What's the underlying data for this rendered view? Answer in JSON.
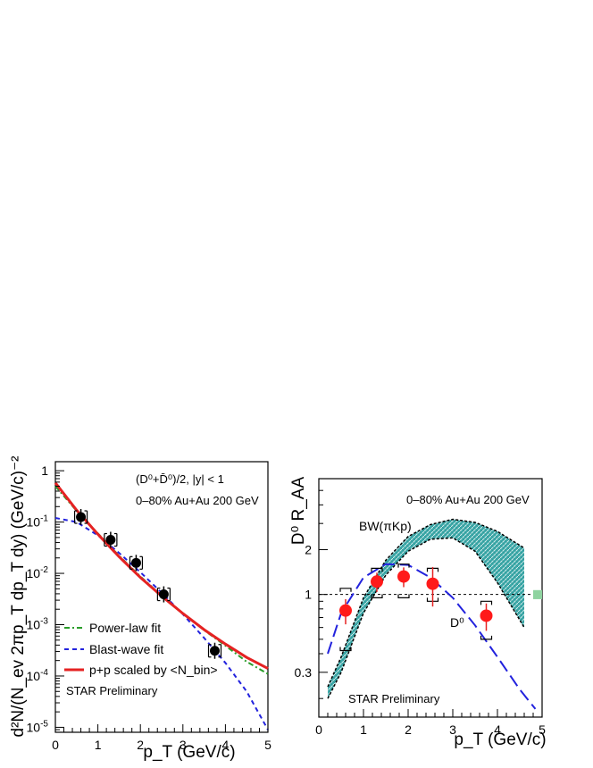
{
  "chart_data": [
    {
      "type": "scatter",
      "title": "",
      "xlabel": "p_T (GeV/c)",
      "ylabel": "d²N/(N_ev 2πp_T dp_T dy) (GeV/c)⁻²",
      "xlim": [
        0,
        5
      ],
      "ylim": [
        8e-06,
        1.5
      ],
      "yscale": "log",
      "grid": false,
      "legend_position": "bottom-left",
      "x_ticks": [
        "0",
        "1",
        "2",
        "3",
        "4",
        "5"
      ],
      "y_ticks": [
        {
          "base": "10",
          "exp": "-5"
        },
        {
          "base": "10",
          "exp": "-4"
        },
        {
          "base": "10",
          "exp": "-3"
        },
        {
          "base": "10",
          "exp": "-2"
        },
        {
          "base": "10",
          "exp": "-1"
        },
        {
          "base": "1",
          "exp": ""
        }
      ],
      "annotations": [
        "(D⁰+D̄⁰)/2, |y| < 1",
        "0–80% Au+Au 200 GeV",
        "STAR Preliminary"
      ],
      "points": {
        "name": "D0 data",
        "x": [
          0.6,
          1.3,
          1.9,
          2.55,
          3.75
        ],
        "y": [
          0.125,
          0.045,
          0.016,
          0.0039,
          0.00031
        ]
      },
      "series": [
        {
          "name": "Power-law fit",
          "color": "#2a9d2a",
          "style": "dashdot",
          "x": [
            0,
            0.5,
            1,
            1.5,
            2,
            2.5,
            3,
            3.5,
            4,
            4.5,
            5
          ],
          "y": [
            0.5,
            0.165,
            0.06,
            0.022,
            0.0087,
            0.0037,
            0.00165,
            0.00078,
            0.00039,
            0.00019,
            0.00011
          ]
        },
        {
          "name": "Blast-wave fit",
          "color": "#2222dd",
          "style": "dashed",
          "x": [
            0,
            0.5,
            1,
            1.5,
            2,
            2.5,
            3,
            3.5,
            4,
            4.5,
            5
          ],
          "y": [
            0.12,
            0.1,
            0.055,
            0.025,
            0.0105,
            0.0042,
            0.0016,
            0.00055,
            0.00018,
            5e-05,
            9e-06
          ]
        },
        {
          "name": "p+p scaled by <N_bin>",
          "color": "#e52222",
          "style": "solid",
          "x": [
            0,
            0.5,
            1,
            1.5,
            2,
            2.5,
            3,
            3.5,
            4,
            4.5,
            5
          ],
          "y": [
            0.58,
            0.17,
            0.058,
            0.021,
            0.0083,
            0.0036,
            0.00165,
            0.0008,
            0.00042,
            0.00023,
            0.00014
          ]
        }
      ]
    },
    {
      "type": "scatter",
      "title": "",
      "xlabel": "p_T (GeV/c)",
      "ylabel": "D⁰ R_AA",
      "xlim": [
        0,
        5
      ],
      "ylim": [
        0.15,
        6
      ],
      "yscale": "log",
      "grid": false,
      "x_ticks": [
        "0",
        "1",
        "2",
        "3",
        "4",
        "5"
      ],
      "y_ticks": [
        "0.3",
        "1",
        "2"
      ],
      "y_tick_values": [
        0.3,
        1,
        2
      ],
      "annotations": [
        "0–80% Au+Au 200 GeV",
        "BW(πKp)",
        "D⁰",
        "STAR Preliminary"
      ],
      "reference_line": 1.0,
      "points": {
        "name": "D0 RAA",
        "x": [
          0.6,
          1.3,
          1.9,
          2.55,
          3.75
        ],
        "y": [
          0.78,
          1.22,
          1.32,
          1.18,
          0.72
        ],
        "err": [
          0.15,
          0.18,
          0.2,
          0.35,
          0.15
        ],
        "sys_lo": [
          0.42,
          0.95,
          0.95,
          0.9,
          0.5
        ],
        "sys_hi": [
          1.1,
          1.5,
          1.6,
          1.5,
          0.9
        ]
      },
      "band": {
        "name": "BW(πKp)",
        "color": "#3ba8a8",
        "x": [
          0.2,
          0.5,
          1,
          1.5,
          2,
          2.5,
          3,
          3.5,
          4,
          4.6
        ],
        "lower": [
          0.2,
          0.3,
          0.75,
          1.35,
          1.95,
          2.35,
          2.4,
          1.95,
          1.2,
          0.6
        ],
        "upper": [
          0.24,
          0.38,
          0.95,
          1.7,
          2.45,
          2.95,
          3.2,
          3.05,
          2.65,
          2.05
        ]
      },
      "curve": {
        "name": "D0",
        "color": "#2222dd",
        "x": [
          0.2,
          0.5,
          1,
          1.5,
          2,
          2.5,
          3,
          3.5,
          4,
          4.5,
          4.85
        ],
        "y": [
          0.4,
          0.75,
          1.3,
          1.6,
          1.58,
          1.3,
          0.95,
          0.62,
          0.38,
          0.23,
          0.17
        ]
      },
      "norm_box": {
        "x": 4.9,
        "y_lo": 0.93,
        "y_hi": 1.07,
        "color": "#8fd3a0"
      }
    }
  ]
}
